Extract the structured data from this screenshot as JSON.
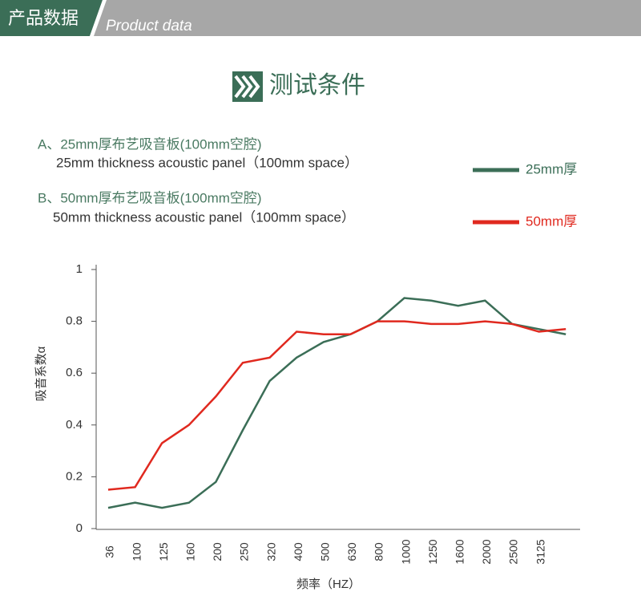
{
  "header": {
    "title": "产品数据",
    "subtitle": "Product data"
  },
  "section_title": "测试条件",
  "conditions": [
    {
      "label": "A、25mm厚布艺吸音板(100mm空腔)",
      "english": "25mm thickness acoustic panel（100mm space）"
    },
    {
      "label": "B、50mm厚布艺吸音板(100mm空腔)",
      "english": "50mm thickness acoustic panel（100mm space）"
    }
  ],
  "chart_data": {
    "type": "line",
    "x_label": "频率（HZ）",
    "y_label": "吸音系数α",
    "categories": [
      "36",
      "100",
      "125",
      "160",
      "200",
      "250",
      "320",
      "400",
      "500",
      "630",
      "800",
      "1000",
      "1250",
      "1600",
      "2000",
      "2500",
      "3125",
      null
    ],
    "series": [
      {
        "name": "25mm厚",
        "color": "#3b6e57",
        "values": [
          0.08,
          0.1,
          0.08,
          0.1,
          0.18,
          0.38,
          0.57,
          0.66,
          0.72,
          0.75,
          0.8,
          0.89,
          0.88,
          0.86,
          0.88,
          0.79,
          0.77,
          0.75
        ]
      },
      {
        "name": "50mm厚",
        "color": "#e0291f",
        "values": [
          0.15,
          0.16,
          0.33,
          0.4,
          0.51,
          0.64,
          0.66,
          0.76,
          0.75,
          0.75,
          0.8,
          0.8,
          0.79,
          0.79,
          0.8,
          0.79,
          0.76,
          0.77
        ]
      }
    ],
    "ylim": [
      0,
      1
    ],
    "yticks": [
      0,
      0.2,
      0.4,
      0.6,
      0.8,
      1
    ],
    "grid": false
  }
}
